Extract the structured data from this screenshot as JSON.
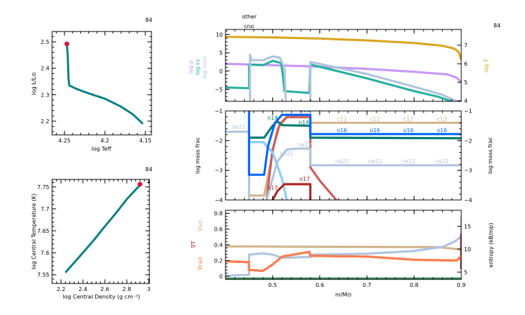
{
  "model_number": "84",
  "top_labels": {
    "line1": "other",
    "line2": "cno"
  },
  "chart_data": [
    {
      "id": "hr",
      "type": "line",
      "xlabel": "log Teff",
      "ylabel": "log L/L⊙",
      "xlim": [
        4.2653,
        4.1424
      ],
      "ylim": [
        2.148,
        2.539
      ],
      "xticks": [
        4.25,
        4.2,
        4.15
      ],
      "xtick_labels": [
        "4.25",
        "4.2",
        "4.15"
      ],
      "yticks": [
        2.2,
        2.3,
        2.4,
        2.5
      ],
      "ytick_labels": [
        "2.2",
        "2.3",
        "2.4",
        "2.5"
      ],
      "series": [
        {
          "color": "#008080",
          "points": [
            [
              4.247,
              2.49
            ],
            [
              4.246,
              2.45
            ],
            [
              4.245,
              2.36
            ],
            [
              4.244,
              2.335
            ],
            [
              4.235,
              2.322
            ],
            [
              4.22,
              2.305
            ],
            [
              4.2,
              2.285
            ],
            [
              4.18,
              2.255
            ],
            [
              4.165,
              2.225
            ],
            [
              4.153,
              2.19
            ]
          ]
        }
      ],
      "marker": {
        "x": 4.247,
        "y": 2.492,
        "color": "#dc143c"
      }
    },
    {
      "id": "central",
      "type": "line",
      "xlabel": "log Central Density (g cm⁻³)",
      "ylabel": "log Central Temperature (K)",
      "xlim": [
        2.119,
        3.006
      ],
      "ylim": [
        7.53,
        7.767
      ],
      "xticks": [
        2.2,
        2.4,
        2.6,
        2.8,
        3.0
      ],
      "xtick_labels": [
        "2.2",
        "2.4",
        "2.6",
        "2.8",
        "3"
      ],
      "yticks": [
        7.55,
        7.6,
        7.65,
        7.7,
        7.75
      ],
      "ytick_labels": [
        "7.55",
        "7.6",
        "7.65",
        "7.7",
        "7.75"
      ],
      "series": [
        {
          "color": "#008080",
          "points": [
            [
              2.24,
              7.555
            ],
            [
              2.4,
              7.6
            ],
            [
              2.5,
              7.629
            ],
            [
              2.6,
              7.66
            ],
            [
              2.7,
              7.69
            ],
            [
              2.8,
              7.722
            ],
            [
              2.92,
              7.754
            ]
          ]
        }
      ],
      "marker": {
        "x": 2.92,
        "y": 7.756,
        "color": "#dc143c"
      }
    },
    {
      "id": "profile-energy",
      "type": "line",
      "xlim": [
        0.4,
        0.9
      ],
      "ylim": [
        -8.3,
        11.4
      ],
      "y2lim": [
        3.97,
        7.85
      ],
      "yticks": [
        -5,
        0,
        5,
        10
      ],
      "ytick_labels": [
        "−5",
        "0",
        "5",
        "10"
      ],
      "y2ticks": [
        4,
        5,
        6,
        7
      ],
      "y2tick_labels": [
        "4",
        "5",
        "6",
        "7"
      ],
      "ylabels": [
        {
          "text": "log ρ",
          "color": "#c896f8"
        },
        {
          "text": "log εν",
          "color": "#28b0a0"
        },
        {
          "text": "log εnuc",
          "color": "#b0c4de"
        }
      ],
      "y2label": {
        "text": "log T",
        "color": "#daa520"
      },
      "series": [
        {
          "name": "log T",
          "axis": "right",
          "color": "#daa520",
          "points": [
            [
              0.4,
              7.45
            ],
            [
              0.5,
              7.42
            ],
            [
              0.6,
              7.36
            ],
            [
              0.7,
              7.26
            ],
            [
              0.8,
              7.12
            ],
            [
              0.86,
              6.97
            ],
            [
              0.885,
              6.82
            ],
            [
              0.895,
              6.62
            ],
            [
              0.9,
              6.2
            ]
          ]
        },
        {
          "name": "log ρ",
          "axis": "left",
          "color": "#c896f8",
          "points": [
            [
              0.4,
              2
            ],
            [
              0.5,
              1.6
            ],
            [
              0.6,
              1.2
            ],
            [
              0.7,
              0.6
            ],
            [
              0.8,
              -0.2
            ],
            [
              0.87,
              -0.9
            ],
            [
              0.89,
              -1.8
            ],
            [
              0.9,
              -3
            ]
          ]
        },
        {
          "name": "log εν",
          "axis": "left",
          "color": "#28b0a0",
          "points": [
            [
              0.4,
              -4.5
            ],
            [
              0.45,
              -4.7
            ],
            [
              0.45,
              1.8
            ],
            [
              0.48,
              1.6
            ],
            [
              0.5,
              2.8
            ],
            [
              0.518,
              2.2
            ],
            [
              0.522,
              -1.5
            ],
            [
              0.525,
              -5.5
            ],
            [
              0.578,
              -6
            ],
            [
              0.58,
              1.8
            ],
            [
              0.7,
              -2
            ],
            [
              0.8,
              -5.5
            ],
            [
              0.85,
              -7
            ],
            [
              0.88,
              -8.3
            ]
          ]
        },
        {
          "name": "log εnuc",
          "axis": "left",
          "color": "#b0c4de",
          "points": [
            [
              0.452,
              -8.3
            ],
            [
              0.452,
              4.5
            ],
            [
              0.455,
              3
            ],
            [
              0.48,
              3
            ],
            [
              0.5,
              4
            ],
            [
              0.515,
              3.7
            ],
            [
              0.525,
              1
            ],
            [
              0.528,
              -8.3
            ],
            null,
            [
              0.58,
              -8.3
            ],
            [
              0.58,
              2.5
            ],
            [
              0.7,
              -0.8
            ],
            [
              0.8,
              -4.3
            ],
            [
              0.86,
              -6.5
            ],
            [
              0.89,
              -8.3
            ]
          ]
        }
      ]
    },
    {
      "id": "mass-fractions",
      "type": "line",
      "ylabel": "log mass frac",
      "y2label": "log mass frac",
      "xlim": [
        0.4,
        0.9
      ],
      "ylim": [
        -4,
        -1
      ],
      "yticks": [
        -4,
        -3,
        -2,
        -1
      ],
      "ytick_labels": [
        "−4",
        "−3",
        "−2",
        "−1"
      ],
      "series": [
        {
          "color": "#d2b48c",
          "points": [
            [
              0.45,
              -3.85
            ],
            [
              0.482,
              -3.85
            ],
            [
              0.49,
              -3.2
            ],
            [
              0.51,
              -1.6
            ],
            [
              0.53,
              -1.22
            ],
            [
              0.58,
              -1.22
            ],
            [
              0.58,
              -1.4
            ],
            [
              0.9,
              -1.4
            ]
          ]
        },
        {
          "color": "#cd5c5c",
          "points": [
            [
              0.487,
              -4
            ],
            [
              0.5,
              -2.3
            ],
            [
              0.515,
              -1.45
            ],
            [
              0.53,
              -1.2
            ],
            [
              0.58,
              -1.2
            ],
            [
              0.58,
              -2.9
            ],
            [
              0.6,
              -3.35
            ],
            [
              0.635,
              -4
            ]
          ]
        },
        {
          "color": "#87cefa",
          "points": [
            [
              0.45,
              -2.05
            ],
            [
              0.48,
              -2.05
            ],
            [
              0.5,
              -2.4
            ],
            [
              0.52,
              -3.3
            ],
            [
              0.53,
              -4
            ]
          ]
        },
        {
          "color": "#b0c4de",
          "points": [
            [
              0.4,
              -1.7
            ],
            [
              0.45,
              -1.7
            ],
            [
              0.45,
              -4
            ],
            null,
            [
              0.487,
              -4
            ],
            [
              0.51,
              -2.7
            ],
            [
              0.53,
              -2.3
            ],
            [
              0.55,
              -2.27
            ],
            [
              0.58,
              -2.27
            ],
            [
              0.58,
              -2.83
            ],
            [
              0.9,
              -2.83
            ]
          ]
        },
        {
          "color": "#007b6e",
          "points": [
            [
              0.45,
              -1.9
            ],
            [
              0.482,
              -1.9
            ],
            [
              0.5,
              -1.5
            ],
            [
              0.51,
              -1.35
            ],
            [
              0.52,
              -1.48
            ],
            [
              0.58,
              -1.5
            ],
            [
              0.58,
              -1.9
            ],
            [
              0.9,
              -1.92
            ]
          ]
        },
        {
          "color": "#0066ff",
          "points": [
            [
              0.45,
              -1
            ],
            [
              0.45,
              -3.15
            ],
            [
              0.482,
              -3.15
            ],
            [
              0.49,
              -2.2
            ],
            [
              0.505,
              -1.4
            ],
            [
              0.52,
              -1.13
            ],
            [
              0.58,
              -1.13
            ],
            [
              0.58,
              -1.78
            ],
            [
              0.9,
              -1.78
            ]
          ]
        },
        {
          "color": "#b22222",
          "points": [
            [
              0.5,
              -4
            ],
            [
              0.51,
              -3.7
            ],
            [
              0.525,
              -3.47
            ],
            [
              0.58,
              -3.47
            ],
            [
              0.58,
              -4
            ]
          ]
        }
      ],
      "labels": [
        {
          "text": "ne22",
          "x": 0.428,
          "y": -1.6,
          "color": "#b0c4de"
        },
        {
          "text": "n14",
          "x": 0.5,
          "y": -1.3,
          "color": "#007b6e"
        },
        {
          "text": "o16",
          "x": 0.568,
          "y": -1.04,
          "color": "#0066ff"
        },
        {
          "text": "n14",
          "x": 0.566,
          "y": -1.45,
          "color": "#007b6e"
        },
        {
          "text": "ne22",
          "x": 0.53,
          "y": -2.5,
          "color": "#b0c4de"
        },
        {
          "text": "ne22",
          "x": 0.568,
          "y": -2.2,
          "color": "#b0c4de"
        },
        {
          "text": "o17",
          "x": 0.568,
          "y": -3.35,
          "color": "#b22222"
        },
        {
          "text": "o17",
          "x": 0.5,
          "y": -3.65,
          "color": "#b22222"
        },
        {
          "text": "c12",
          "x": 0.647,
          "y": -1.33,
          "color": "#d2b48c"
        },
        {
          "text": "c12",
          "x": 0.717,
          "y": -1.33,
          "color": "#d2b48c"
        },
        {
          "text": "c12",
          "x": 0.788,
          "y": -1.33,
          "color": "#d2b48c"
        },
        {
          "text": "c12",
          "x": 0.859,
          "y": -1.33,
          "color": "#d2b48c"
        },
        {
          "text": "o16",
          "x": 0.647,
          "y": -1.72,
          "color": "#0066ff"
        },
        {
          "text": "o16",
          "x": 0.717,
          "y": -1.72,
          "color": "#0066ff"
        },
        {
          "text": "o16",
          "x": 0.788,
          "y": -1.72,
          "color": "#0066ff"
        },
        {
          "text": "o16",
          "x": 0.859,
          "y": -1.72,
          "color": "#0066ff"
        },
        {
          "text": "ne22",
          "x": 0.647,
          "y": -2.75,
          "color": "#b0c4de"
        },
        {
          "text": "ne22",
          "x": 0.717,
          "y": -2.75,
          "color": "#b0c4de"
        },
        {
          "text": "ne22",
          "x": 0.788,
          "y": -2.75,
          "color": "#b0c4de"
        },
        {
          "text": "ne22",
          "x": 0.859,
          "y": -2.75,
          "color": "#b0c4de"
        }
      ]
    },
    {
      "id": "gradients",
      "type": "line",
      "xlabel": "m/M⊙",
      "xlim": [
        0.4,
        0.9
      ],
      "ylim": [
        -0.04,
        0.84
      ],
      "y2lim": [
        3.4,
        18.5
      ],
      "xticks": [
        0.5,
        0.6,
        0.7,
        0.8,
        0.9
      ],
      "xtick_labels": [
        "0.5",
        "0.6",
        "0.7",
        "0.8",
        "0.9"
      ],
      "yticks": [
        0,
        0.2,
        0.4,
        0.6,
        0.8
      ],
      "ytick_labels": [
        "0",
        "0.2",
        "0.4",
        "0.6",
        "0.8"
      ],
      "y2ticks": [
        5,
        10,
        15
      ],
      "y2tick_labels": [
        "5",
        "10",
        "15"
      ],
      "ylabels": [
        {
          "text": "∇ad",
          "color": "#d2b48c"
        },
        {
          "text": "∇T",
          "color": "#b22222"
        },
        {
          "text": "∇rad",
          "color": "#ff7f50"
        }
      ],
      "y2label": {
        "text": "entropy (kB/mp)",
        "color": "#000000"
      },
      "series": [
        {
          "name": "∇ad",
          "axis": "left",
          "color": "#d2b48c",
          "points": [
            [
              0.4,
              0.38
            ],
            [
              0.6,
              0.375
            ],
            [
              0.85,
              0.37
            ],
            [
              0.9,
              0.34
            ]
          ]
        },
        {
          "name": "entropy",
          "axis": "right",
          "color": "#b0c4de",
          "points": [
            [
              0.4,
              4.2
            ],
            [
              0.45,
              4.4
            ],
            [
              0.45,
              8.8
            ],
            [
              0.48,
              9.1
            ],
            [
              0.5,
              8.8
            ],
            [
              0.52,
              8.1
            ],
            [
              0.58,
              8.3
            ],
            [
              0.58,
              8.8
            ],
            [
              0.7,
              9
            ],
            [
              0.8,
              9.6
            ],
            [
              0.86,
              10.5
            ],
            [
              0.885,
              11.6
            ],
            [
              0.9,
              12.8
            ],
            [
              0.9,
              17
            ]
          ]
        },
        {
          "name": "∇T",
          "axis": "left",
          "color": "#b22222",
          "points": [
            [
              0.4,
              0.19
            ],
            [
              0.45,
              0.18
            ],
            [
              0.45,
              0.08
            ],
            [
              0.48,
              0.07
            ],
            [
              0.5,
              0.15
            ],
            [
              0.52,
              0.25
            ],
            [
              0.578,
              0.31
            ],
            [
              0.58,
              0.26
            ],
            [
              0.7,
              0.25
            ],
            [
              0.8,
              0.21
            ],
            [
              0.89,
              0.2
            ],
            [
              0.9,
              0.25
            ],
            [
              0.9,
              0.53
            ],
            [
              0.9,
              0.09
            ]
          ]
        },
        {
          "name": "∇rad",
          "axis": "left",
          "color": "#ff7f50",
          "points": [
            [
              0.4,
              0.19
            ],
            [
              0.45,
              0.18
            ],
            [
              0.45,
              0.08
            ],
            [
              0.48,
              0.07
            ],
            [
              0.5,
              0.15
            ],
            [
              0.52,
              0.25
            ],
            [
              0.578,
              0.31
            ],
            [
              0.58,
              0.26
            ],
            [
              0.7,
              0.25
            ],
            [
              0.8,
              0.21
            ],
            [
              0.89,
              0.2
            ],
            [
              0.9,
              0.26
            ]
          ]
        },
        {
          "axis": "left",
          "color": "#2e8b57",
          "points": [
            [
              0.4,
              -0.03
            ],
            [
              0.9,
              -0.03
            ]
          ]
        }
      ]
    }
  ]
}
